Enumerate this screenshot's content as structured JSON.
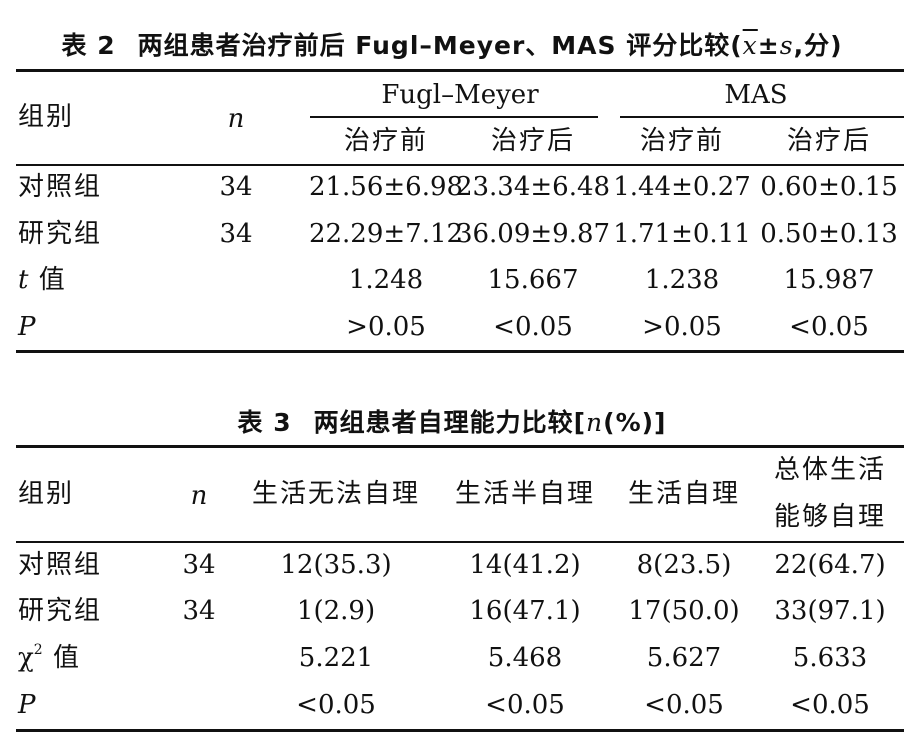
{
  "table2": {
    "caption_num": "表 2",
    "caption_text_pre": "两组患者治疗前后 Fugl–Meyer、MAS 评分比较(",
    "caption_xbar": "x",
    "caption_pm": "±",
    "caption_s": "s",
    "caption_text_post": ",分)",
    "col_group": "组别",
    "col_n": "n",
    "span_fm": "Fugl–Meyer",
    "span_mas": "MAS",
    "sub_before": "治疗前",
    "sub_after": "治疗后",
    "rows": [
      {
        "label": "对照组",
        "n": "34",
        "v": [
          "21.56±6.98",
          "23.34±6.48",
          "1.44±0.27",
          "0.60±0.15"
        ]
      },
      {
        "label": "研究组",
        "n": "34",
        "v": [
          "22.29±7.12",
          "36.09±9.87",
          "1.71±0.11",
          "0.50±0.13"
        ]
      }
    ],
    "t_label_sym": "t",
    "t_label_text": " 值",
    "t_values": [
      "1.248",
      "15.667",
      "1.238",
      "15.987"
    ],
    "p_label": "P",
    "p_values": [
      ">0.05",
      "<0.05",
      ">0.05",
      "<0.05"
    ]
  },
  "table3": {
    "caption_num": "表 3",
    "caption_text_pre": "两组患者自理能力比较[",
    "caption_n": "n",
    "caption_text_post": "(%)]",
    "col_group": "组别",
    "col_n": "n",
    "headers": [
      "生活无法自理",
      "生活半自理",
      "生活自理"
    ],
    "header_last_line1": "总体生活",
    "header_last_line2": "能够自理",
    "rows": [
      {
        "label": "对照组",
        "n": "34",
        "v": [
          "12(35.3)",
          "14(41.2)",
          "8(23.5)",
          "22(64.7)"
        ]
      },
      {
        "label": "研究组",
        "n": "34",
        "v": [
          "1(2.9)",
          "16(47.1)",
          "17(50.0)",
          "33(97.1)"
        ]
      }
    ],
    "chi_label_sym": "χ",
    "chi_label_sup": "2",
    "chi_label_text": " 值",
    "chi_values": [
      "5.221",
      "5.468",
      "5.627",
      "5.633"
    ],
    "p_label": "P",
    "p_values": [
      "<0.05",
      "<0.05",
      "<0.05",
      "<0.05"
    ]
  }
}
